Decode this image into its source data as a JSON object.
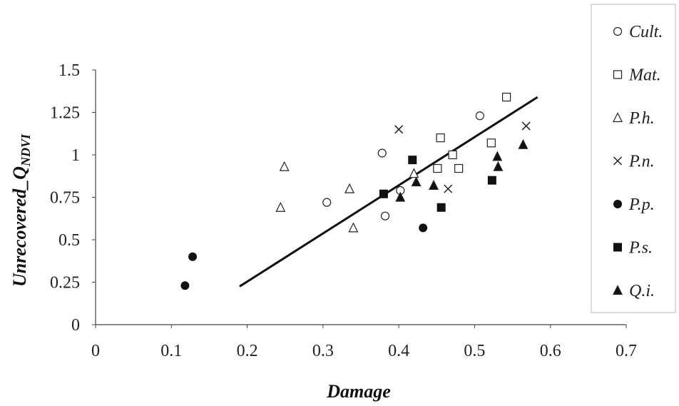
{
  "chart_data": {
    "type": "scatter",
    "title": "",
    "xlabel": "Damage",
    "ylabel_main": "Unrecovered_Q",
    "ylabel_sub": "NDVI",
    "xlim": [
      0,
      0.7
    ],
    "ylim": [
      0,
      1.5
    ],
    "x_ticks": [
      "0",
      "0.1",
      "0.2",
      "0.3",
      "0.4",
      "0.5",
      "0.6",
      "0.7"
    ],
    "y_ticks": [
      "0",
      "0.25",
      "0.5",
      "0.75",
      "1",
      "1.25",
      "1.5"
    ],
    "x_tick_values": [
      0,
      0.1,
      0.2,
      0.3,
      0.4,
      0.5,
      0.6,
      0.7
    ],
    "y_tick_values": [
      0,
      0.25,
      0.5,
      0.75,
      1,
      1.25,
      1.5
    ],
    "grid": false,
    "legend_position": "right",
    "series": [
      {
        "name": "Cult.",
        "marker": "circle-open",
        "points": [
          [
            0.305,
            0.72
          ],
          [
            0.378,
            1.01
          ],
          [
            0.382,
            0.64
          ],
          [
            0.402,
            0.79
          ],
          [
            0.507,
            1.23
          ]
        ]
      },
      {
        "name": "Mat.",
        "marker": "square-open",
        "points": [
          [
            0.451,
            0.92
          ],
          [
            0.455,
            1.1
          ],
          [
            0.471,
            1.0
          ],
          [
            0.479,
            0.92
          ],
          [
            0.522,
            1.07
          ],
          [
            0.542,
            1.34
          ]
        ]
      },
      {
        "name": "P.h.",
        "marker": "triangle-open",
        "points": [
          [
            0.244,
            0.69
          ],
          [
            0.249,
            0.93
          ],
          [
            0.335,
            0.8
          ],
          [
            0.34,
            0.57
          ],
          [
            0.42,
            0.89
          ]
        ]
      },
      {
        "name": "P.n.",
        "marker": "x",
        "points": [
          [
            0.4,
            1.15
          ],
          [
            0.465,
            0.8
          ],
          [
            0.568,
            1.17
          ]
        ]
      },
      {
        "name": "P.p.",
        "marker": "circle-filled",
        "points": [
          [
            0.118,
            0.23
          ],
          [
            0.128,
            0.4
          ],
          [
            0.432,
            0.57
          ]
        ]
      },
      {
        "name": "P.s.",
        "marker": "square-filled",
        "points": [
          [
            0.38,
            0.77
          ],
          [
            0.418,
            0.97
          ],
          [
            0.456,
            0.69
          ],
          [
            0.523,
            0.85
          ]
        ]
      },
      {
        "name": "Q.i.",
        "marker": "triangle-filled",
        "points": [
          [
            0.402,
            0.75
          ],
          [
            0.423,
            0.84
          ],
          [
            0.446,
            0.82
          ],
          [
            0.53,
            0.99
          ],
          [
            0.531,
            0.93
          ],
          [
            0.564,
            1.06
          ]
        ]
      }
    ],
    "trendline": {
      "x": [
        0.19,
        0.583
      ],
      "y": [
        0.225,
        1.34
      ]
    }
  }
}
